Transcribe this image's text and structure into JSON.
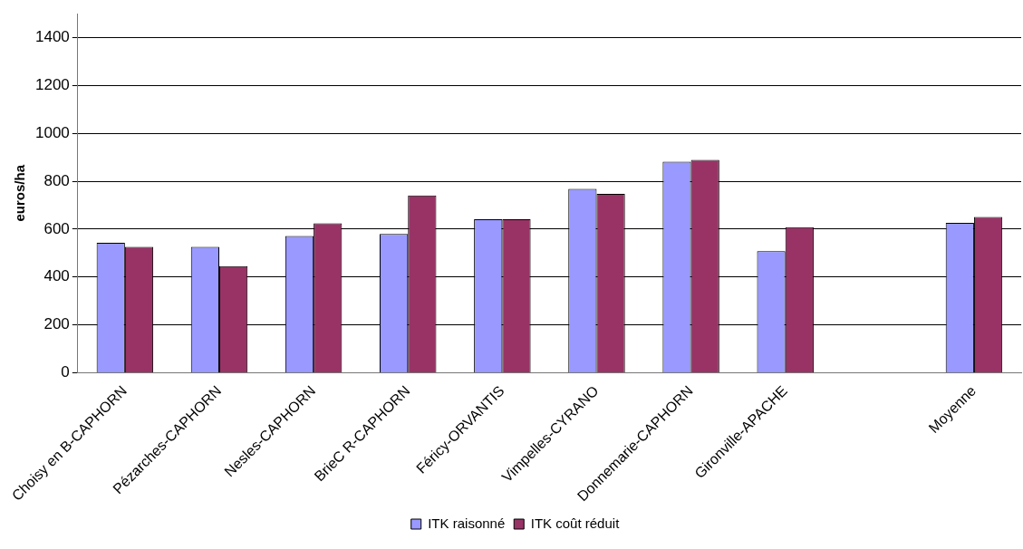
{
  "chart_data": {
    "type": "bar",
    "ylabel": "euros/ha",
    "categories": [
      "Choisy en B-CAPHORN",
      "Pézarches-CAPHORN",
      "Nesles-CAPHORN",
      "BrieC R-CAPHORN",
      "Féricy-ORVANTIS",
      "Vimpelles-CYRANO",
      "Donnemarie-CAPHORN",
      "Gironville-APACHE",
      null,
      "Moyenne"
    ],
    "series": [
      {
        "name": "ITK raisonné",
        "color": "#9999ff",
        "values": [
          543,
          526,
          571,
          580,
          641,
          768,
          881,
          508,
          null,
          626
        ]
      },
      {
        "name": "ITK coût réduit",
        "color": "#993366",
        "values": [
          526,
          445,
          624,
          740,
          641,
          747,
          889,
          608,
          null,
          651
        ]
      }
    ],
    "ylim": [
      0,
      1500
    ],
    "yticks": [
      0,
      200,
      400,
      600,
      800,
      1000,
      1200,
      1400
    ],
    "grid": "y",
    "legend": "bottom"
  }
}
